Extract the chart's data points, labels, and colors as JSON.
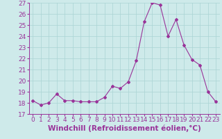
{
  "x": [
    0,
    1,
    2,
    3,
    4,
    5,
    6,
    7,
    8,
    9,
    10,
    11,
    12,
    13,
    14,
    15,
    16,
    17,
    18,
    19,
    20,
    21,
    22,
    23
  ],
  "y": [
    18.2,
    17.8,
    18.0,
    18.8,
    18.2,
    18.2,
    18.1,
    18.1,
    18.1,
    18.5,
    19.5,
    19.3,
    19.9,
    21.8,
    25.3,
    27.0,
    26.8,
    24.0,
    25.5,
    23.2,
    21.9,
    21.4,
    19.0,
    18.1
  ],
  "line_color": "#993399",
  "marker": "D",
  "marker_size": 2.0,
  "linewidth": 0.8,
  "xlabel": "Windchill (Refroidissement éolien,°C)",
  "xlim": [
    -0.5,
    23.5
  ],
  "ylim": [
    17,
    27
  ],
  "yticks": [
    17,
    18,
    19,
    20,
    21,
    22,
    23,
    24,
    25,
    26,
    27
  ],
  "xticks": [
    0,
    1,
    2,
    3,
    4,
    5,
    6,
    7,
    8,
    9,
    10,
    11,
    12,
    13,
    14,
    15,
    16,
    17,
    18,
    19,
    20,
    21,
    22,
    23
  ],
  "bg_color": "#ceeaea",
  "grid_color": "#aad4d4",
  "xlabel_fontsize": 7.5,
  "tick_fontsize": 6.5,
  "xlabel_color": "#993399",
  "tick_color": "#993399",
  "axis_color": "#993399"
}
